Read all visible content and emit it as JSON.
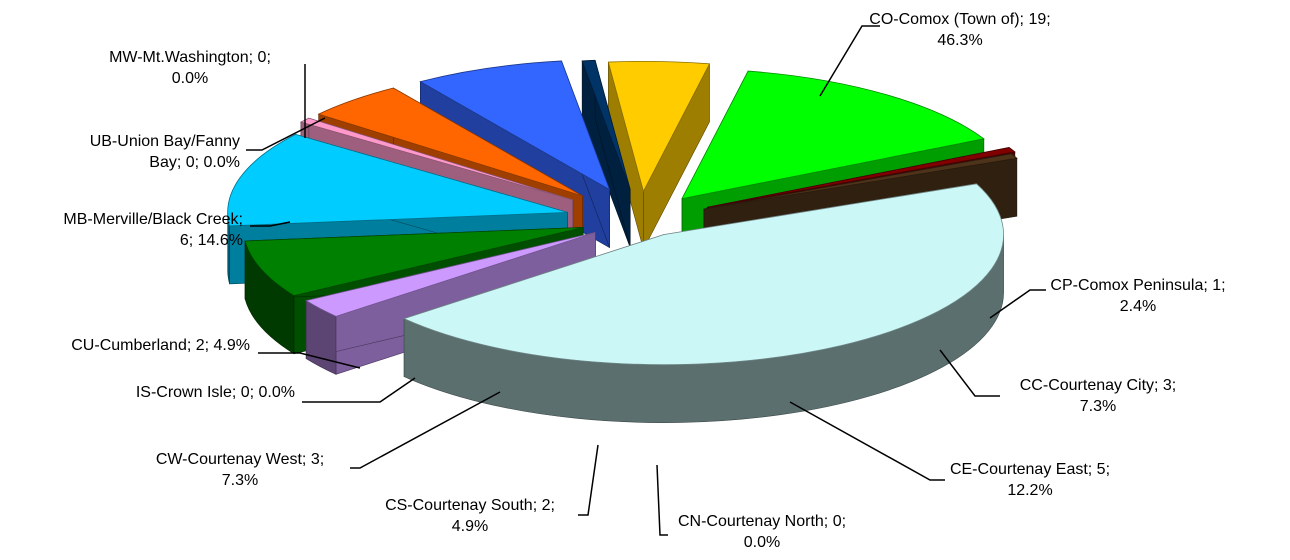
{
  "chart_data": {
    "type": "pie",
    "style": "3d-exploded",
    "title": "",
    "slices": [
      {
        "label": "CO-Comox (Town of)",
        "value": 19,
        "percent": "46.3%",
        "color": "#ccf7f7",
        "line1": "CO-Comox (Town of); 19;",
        "line2": "46.3%"
      },
      {
        "label": "CP-Comox Peninsula",
        "value": 1,
        "percent": "2.4%",
        "color": "#cc99ff",
        "line1": "CP-Comox Peninsula; 1;",
        "line2": "2.4%"
      },
      {
        "label": "CC-Courtenay City",
        "value": 3,
        "percent": "7.3%",
        "color": "#008000",
        "line1": "CC-Courtenay City; 3;",
        "line2": "7.3%"
      },
      {
        "label": "CE-Courtenay East",
        "value": 5,
        "percent": "12.2%",
        "color": "#00ccff",
        "line1": "CE-Courtenay East; 5;",
        "line2": "12.2%"
      },
      {
        "label": "CN-Courtenay North",
        "value": 0,
        "percent": "0.0%",
        "color": "#ff99cc",
        "line1": "CN-Courtenay North; 0;",
        "line2": "0.0%"
      },
      {
        "label": "CS-Courtenay South",
        "value": 2,
        "percent": "4.9%",
        "color": "#ff6600",
        "line1": "CS-Courtenay South; 2;",
        "line2": "4.9%"
      },
      {
        "label": "CW-Courtenay West",
        "value": 3,
        "percent": "7.3%",
        "color": "#3366ff",
        "line1": "CW-Courtenay West; 3;",
        "line2": "7.3%"
      },
      {
        "label": "IS-Crown Isle",
        "value": 0,
        "percent": "0.0%",
        "color": "#003366",
        "line1": "IS-Crown Isle; 0; 0.0%",
        "line2": ""
      },
      {
        "label": "CU-Cumberland",
        "value": 2,
        "percent": "4.9%",
        "color": "#ffcc00",
        "line1": "CU-Cumberland; 2; 4.9%",
        "line2": ""
      },
      {
        "label": "MB-Merville/Black Creek",
        "value": 6,
        "percent": "14.6%",
        "color": "#00ff00",
        "line1": "MB-Merville/Black Creek;",
        "line2": "6; 14.6%"
      },
      {
        "label": "UB-Union Bay/Fanny Bay",
        "value": 0,
        "percent": "0.0%",
        "color": "#800000",
        "line1": "UB-Union Bay/Fanny",
        "line2": "Bay; 0; 0.0%"
      },
      {
        "label": "MW-Mt.Washington",
        "value": 0,
        "percent": "0.0%",
        "color": "#4d3319",
        "line1": "MW-Mt.Washington; 0;",
        "line2": "0.0%"
      }
    ]
  }
}
